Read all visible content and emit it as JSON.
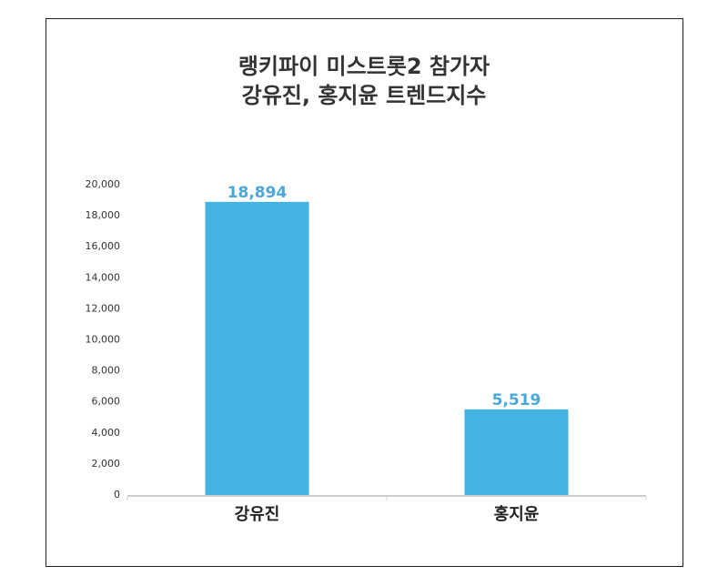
{
  "chart_data": {
    "type": "bar",
    "title": [
      "랭키파이 미스트롯2 참가자",
      "강유진, 홍지윤 트렌드지수"
    ],
    "categories": [
      "강유진",
      "홍지윤"
    ],
    "values": [
      18894,
      5519
    ],
    "ylim": [
      0,
      20000
    ],
    "yticks": [
      0,
      2000,
      4000,
      6000,
      8000,
      10000,
      12000,
      14000,
      16000,
      18000,
      20000
    ],
    "grid": false,
    "legend": "none",
    "value_labels": true
  },
  "colors": {
    "bar": "#42b3e2",
    "value_label": "#4aa8d8",
    "axis": "#9a9a9a",
    "frame": "#222222"
  }
}
